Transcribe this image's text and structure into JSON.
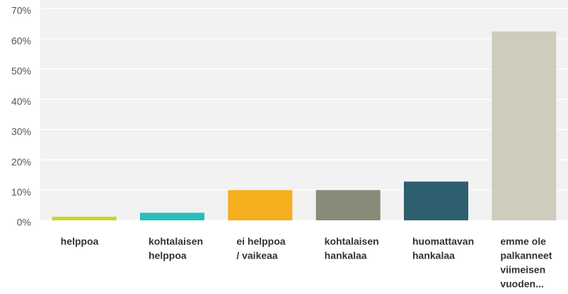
{
  "chart_data": {
    "type": "bar",
    "categories": [
      [
        "helppoa"
      ],
      [
        "kohtalaisen",
        "helppoa"
      ],
      [
        "ei helppoa",
        "/ vaikeaa"
      ],
      [
        "kohtalaisen",
        "hankalaa"
      ],
      [
        "huomattavan",
        "hankalaa"
      ],
      [
        "emme ole",
        "palkanneet",
        "viimeisen",
        "vuoden..."
      ]
    ],
    "values": [
      1.2,
      2.5,
      10,
      10,
      12.8,
      62.4
    ],
    "colors": [
      "#c8d42e",
      "#2bbdbd",
      "#f5ae1e",
      "#8a8a78",
      "#2d5f6e",
      "#cfccbd"
    ],
    "ylim": [
      0,
      70
    ],
    "yticks": [
      {
        "value": 0,
        "label": "0%"
      },
      {
        "value": 10,
        "label": "10%"
      },
      {
        "value": 20,
        "label": "20%"
      },
      {
        "value": 30,
        "label": "30%"
      },
      {
        "value": 40,
        "label": "40%"
      },
      {
        "value": 50,
        "label": "50%"
      },
      {
        "value": 60,
        "label": "60%"
      },
      {
        "value": 70,
        "label": "70%"
      }
    ],
    "grid": true
  }
}
